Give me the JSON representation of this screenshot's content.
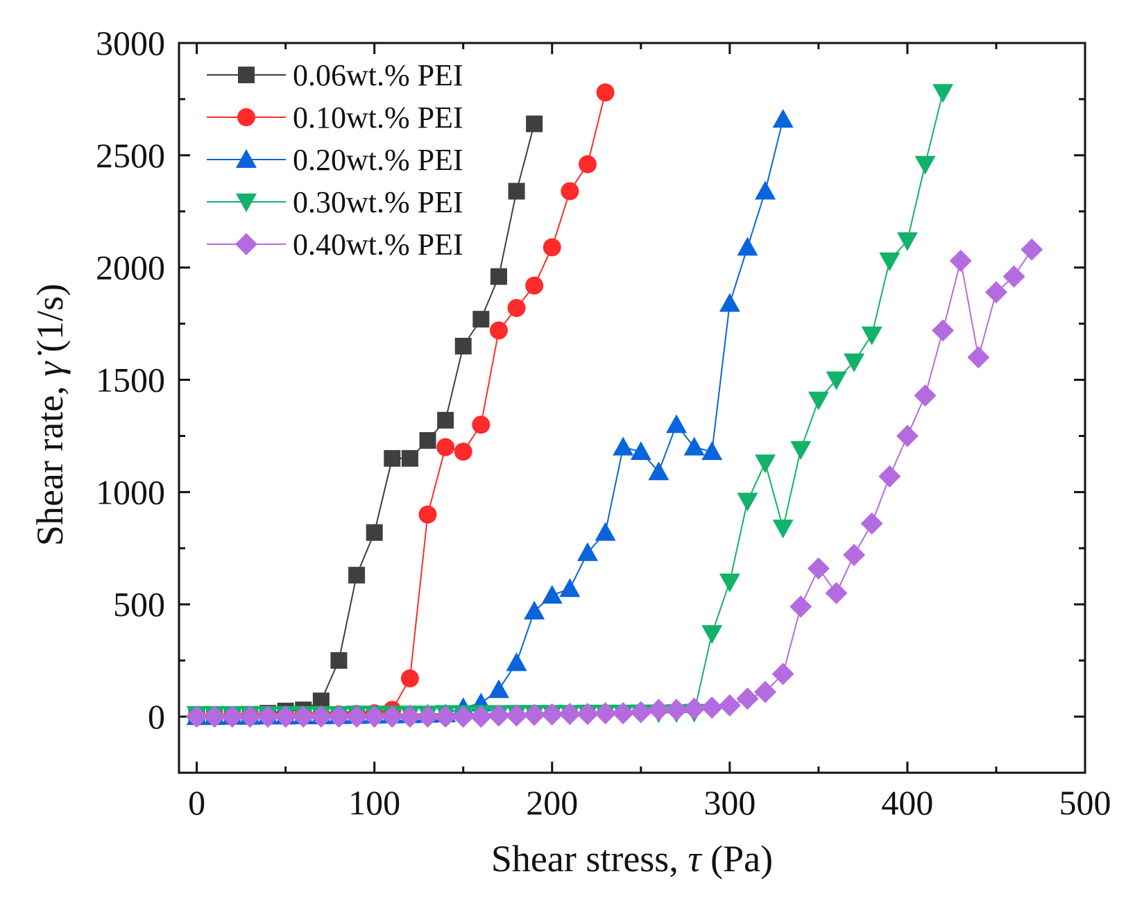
{
  "chart_data": {
    "type": "line",
    "title": "",
    "xlabel": "Shear stress, τ (Pa)",
    "xlabel_parts": [
      "Shear stress, ",
      "τ",
      " (Pa)"
    ],
    "ylabel": "Shear rate, γ̇ (1/s)",
    "ylabel_parts": [
      "Shear rate, ",
      "γ̇",
      " (1/s)"
    ],
    "xlim": [
      -10,
      500
    ],
    "ylim": [
      -250,
      3000
    ],
    "x_ticks": [
      0,
      100,
      200,
      300,
      400,
      500
    ],
    "y_ticks": [
      0,
      500,
      1000,
      1500,
      2000,
      2500,
      3000
    ],
    "grid": false,
    "legend_position": "top-left",
    "series": [
      {
        "name": "0.06wt.% PEI",
        "color": "#3f3f3f",
        "marker": "square",
        "x": [
          0,
          10,
          20,
          30,
          40,
          50,
          60,
          70,
          80,
          90,
          100,
          110,
          120,
          130,
          140,
          150,
          160,
          170,
          180,
          190
        ],
        "y": [
          0,
          2,
          5,
          10,
          15,
          25,
          30,
          70,
          250,
          630,
          820,
          1150,
          1150,
          1230,
          1320,
          1650,
          1770,
          1960,
          2340,
          2640
        ]
      },
      {
        "name": "0.10wt.% PEI",
        "color": "#ff2a2a",
        "marker": "circle",
        "x": [
          0,
          10,
          20,
          30,
          40,
          50,
          60,
          70,
          80,
          90,
          100,
          110,
          120,
          130,
          140,
          150,
          160,
          170,
          180,
          190,
          200,
          210,
          220,
          230
        ],
        "y": [
          0,
          1,
          2,
          3,
          4,
          5,
          6,
          8,
          10,
          12,
          15,
          30,
          170,
          900,
          1200,
          1180,
          1300,
          1720,
          1820,
          1920,
          2090,
          2340,
          2460,
          2780
        ]
      },
      {
        "name": "0.20wt.% PEI",
        "color": "#0a64dc",
        "marker": "triangle-up",
        "x": [
          0,
          10,
          20,
          30,
          40,
          50,
          60,
          70,
          80,
          90,
          100,
          110,
          120,
          130,
          140,
          150,
          160,
          170,
          180,
          190,
          200,
          210,
          220,
          230,
          240,
          250,
          260,
          270,
          280,
          290,
          300,
          310,
          320,
          330
        ],
        "y": [
          0,
          0,
          1,
          1,
          2,
          2,
          3,
          3,
          4,
          5,
          6,
          7,
          8,
          10,
          12,
          40,
          60,
          120,
          240,
          470,
          540,
          570,
          730,
          820,
          1200,
          1180,
          1090,
          1300,
          1200,
          1180,
          1840,
          2090,
          2340,
          2660
        ]
      },
      {
        "name": "0.30wt.% PEI",
        "color": "#12b26a",
        "marker": "triangle-down",
        "x": [
          0,
          10,
          20,
          30,
          40,
          50,
          60,
          70,
          80,
          90,
          100,
          110,
          120,
          130,
          140,
          150,
          160,
          170,
          180,
          190,
          200,
          210,
          220,
          230,
          240,
          250,
          260,
          270,
          280,
          290,
          300,
          310,
          320,
          330,
          340,
          350,
          360,
          370,
          380,
          390,
          400,
          410,
          420
        ],
        "y": [
          10,
          10,
          10,
          10,
          10,
          10,
          10,
          10,
          10,
          12,
          12,
          12,
          12,
          12,
          14,
          14,
          14,
          14,
          15,
          15,
          15,
          15,
          16,
          16,
          16,
          17,
          17,
          18,
          20,
          370,
          600,
          960,
          1130,
          840,
          1190,
          1410,
          1500,
          1580,
          1700,
          2030,
          2120,
          2460,
          2780
        ]
      },
      {
        "name": "0.40wt.% PEI",
        "color": "#b56be0",
        "marker": "diamond",
        "x": [
          0,
          10,
          20,
          30,
          40,
          50,
          60,
          70,
          80,
          90,
          100,
          110,
          120,
          130,
          140,
          150,
          160,
          170,
          180,
          190,
          200,
          210,
          220,
          230,
          240,
          250,
          260,
          270,
          280,
          290,
          300,
          310,
          320,
          330,
          340,
          350,
          360,
          370,
          380,
          390,
          400,
          410,
          420,
          430,
          440,
          450,
          460,
          470
        ],
        "y": [
          0,
          0,
          0,
          0,
          0,
          0,
          0,
          0,
          0,
          0,
          0,
          0,
          0,
          0,
          0,
          0,
          0,
          5,
          5,
          8,
          10,
          12,
          12,
          15,
          15,
          20,
          30,
          30,
          35,
          40,
          50,
          80,
          110,
          190,
          490,
          660,
          550,
          720,
          860,
          1070,
          1250,
          1430,
          1720,
          2030,
          1600,
          1890,
          1960,
          2080
        ]
      }
    ]
  }
}
